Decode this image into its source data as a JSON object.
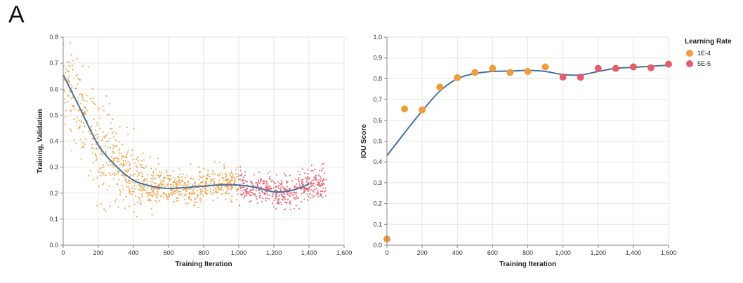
{
  "figure": {
    "panel_label": "A"
  },
  "colors": {
    "lr_1e4": "#f19d3b",
    "lr_5e5": "#e45d6d",
    "trend": "#4670a2",
    "grid": "#e6e6e6",
    "axis": "#888888"
  },
  "chart_data": [
    {
      "type": "scatter",
      "xlabel": "Training Iteration",
      "ylabel": "Training, Validation",
      "xlim": [
        0,
        1600
      ],
      "ylim": [
        0,
        0.8
      ],
      "x_ticks": [
        0,
        200,
        400,
        600,
        800,
        1000,
        1200,
        1400,
        1600
      ],
      "x_tick_labels": [
        "0",
        "200",
        "400",
        "600",
        "800",
        "1,000",
        "1,200",
        "1,400",
        "1,600"
      ],
      "y_ticks": [
        0,
        0.1,
        0.2,
        0.3,
        0.4,
        0.5,
        0.6,
        0.7,
        0.8
      ],
      "y_tick_labels": [
        "0.0",
        "0.1",
        "0.2",
        "0.3",
        "0.4",
        "0.5",
        "0.6",
        "0.7",
        "0.8"
      ],
      "grid": true,
      "scatter_groups": [
        {
          "color_key": "lr_1e4",
          "x_range": [
            0,
            1000
          ],
          "count": 900
        },
        {
          "color_key": "lr_5e5",
          "x_range": [
            1000,
            1500
          ],
          "count": 450
        }
      ],
      "trend_line": {
        "x": [
          0,
          100,
          200,
          300,
          400,
          500,
          600,
          700,
          800,
          900,
          1000,
          1100,
          1200,
          1300,
          1400
        ],
        "y": [
          0.655,
          0.52,
          0.385,
          0.305,
          0.25,
          0.227,
          0.218,
          0.222,
          0.227,
          0.232,
          0.231,
          0.222,
          0.205,
          0.21,
          0.235
        ]
      }
    },
    {
      "type": "scatter",
      "xlabel": "Training Iteration",
      "ylabel": "IOU Score",
      "xlim": [
        0,
        1600
      ],
      "ylim": [
        0,
        1.0
      ],
      "x_ticks": [
        0,
        200,
        400,
        600,
        800,
        1000,
        1200,
        1400,
        1600
      ],
      "x_tick_labels": [
        "0",
        "200",
        "400",
        "600",
        "800",
        "1,000",
        "1,200",
        "1,400",
        "1,600"
      ],
      "y_ticks": [
        0,
        0.1,
        0.2,
        0.3,
        0.4,
        0.5,
        0.6,
        0.7,
        0.8,
        0.9,
        1.0
      ],
      "y_tick_labels": [
        "0.0",
        "0.1",
        "0.2",
        "0.3",
        "0.4",
        "0.5",
        "0.6",
        "0.7",
        "0.8",
        "0.9",
        "1.0"
      ],
      "grid": true,
      "legend": {
        "title": "Learning Rate",
        "placement": "right",
        "entries": [
          {
            "label": "1E-4",
            "color_key": "lr_1e4"
          },
          {
            "label": "5E-5",
            "color_key": "lr_5e5"
          }
        ]
      },
      "points": [
        {
          "x": 0,
          "y": 0.03,
          "lr": "1E-4"
        },
        {
          "x": 100,
          "y": 0.655,
          "lr": "1E-4"
        },
        {
          "x": 200,
          "y": 0.65,
          "lr": "1E-4"
        },
        {
          "x": 300,
          "y": 0.76,
          "lr": "1E-4"
        },
        {
          "x": 400,
          "y": 0.805,
          "lr": "1E-4"
        },
        {
          "x": 500,
          "y": 0.83,
          "lr": "1E-4"
        },
        {
          "x": 600,
          "y": 0.85,
          "lr": "1E-4"
        },
        {
          "x": 700,
          "y": 0.83,
          "lr": "1E-4"
        },
        {
          "x": 800,
          "y": 0.835,
          "lr": "1E-4"
        },
        {
          "x": 900,
          "y": 0.857,
          "lr": "1E-4"
        },
        {
          "x": 1000,
          "y": 0.808,
          "lr": "5E-5"
        },
        {
          "x": 1100,
          "y": 0.807,
          "lr": "5E-5"
        },
        {
          "x": 1200,
          "y": 0.85,
          "lr": "5E-5"
        },
        {
          "x": 1300,
          "y": 0.85,
          "lr": "5E-5"
        },
        {
          "x": 1400,
          "y": 0.857,
          "lr": "5E-5"
        },
        {
          "x": 1500,
          "y": 0.853,
          "lr": "5E-5"
        },
        {
          "x": 1600,
          "y": 0.87,
          "lr": "5E-5"
        }
      ],
      "trend_line": {
        "x": [
          0,
          100,
          200,
          300,
          400,
          500,
          600,
          700,
          800,
          900,
          1000,
          1100,
          1200,
          1300,
          1400,
          1500,
          1600
        ],
        "y": [
          0.43,
          0.54,
          0.645,
          0.74,
          0.8,
          0.825,
          0.835,
          0.837,
          0.84,
          0.835,
          0.82,
          0.818,
          0.835,
          0.85,
          0.855,
          0.86,
          0.865
        ]
      }
    }
  ]
}
